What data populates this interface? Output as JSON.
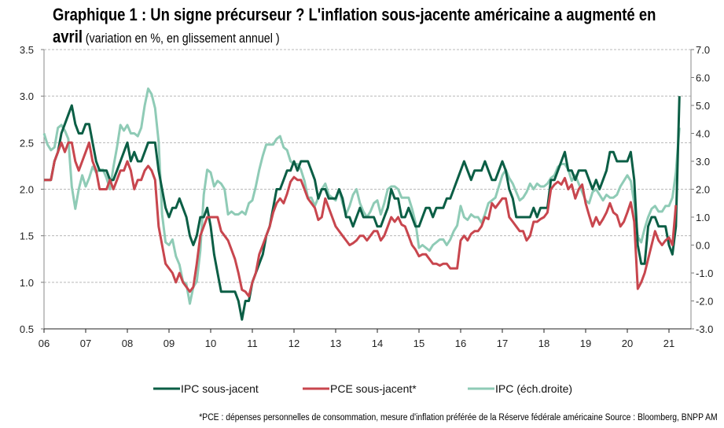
{
  "title": {
    "line1": "Graphique 1 : Un signe précurseur ? L'inflation sous-jacente américaine a augmenté en",
    "line2_bold": "avril",
    "line2_rest": "(variation en %, en glissement annuel )"
  },
  "footnote": "*PCE : dépenses personnelles de consommation, mesure d'inflation préférée de la Réserve fédérale américaine Source : Bloomberg, BNPP AM",
  "chart_data": {
    "type": "line",
    "frequency": "monthly",
    "start": "2006-01",
    "x_tick_labels": [
      "06",
      "07",
      "08",
      "09",
      "10",
      "11",
      "12",
      "13",
      "14",
      "15",
      "16",
      "17",
      "18",
      "19",
      "20",
      "21"
    ],
    "y_left": {
      "range": [
        0.5,
        3.5
      ],
      "ticks": [
        "0.5",
        "1.0",
        "1.5",
        "2.0",
        "2.5",
        "3.0",
        "3.5"
      ]
    },
    "y_right": {
      "range": [
        -3.0,
        7.0
      ],
      "ticks": [
        "-3.0",
        "-2.0",
        "-1.0",
        "0.0",
        "1.0",
        "2.0",
        "3.0",
        "4.0",
        "5.0",
        "6.0",
        "7.0"
      ]
    },
    "grid": "horizontal dashed",
    "legend_position": "bottom",
    "series": [
      {
        "name": "IPC sous-jacent",
        "axis": "left",
        "color": "#0b5e45",
        "values": [
          2.1,
          2.1,
          2.1,
          2.3,
          2.4,
          2.6,
          2.7,
          2.8,
          2.9,
          2.7,
          2.6,
          2.6,
          2.7,
          2.7,
          2.5,
          2.3,
          2.2,
          2.2,
          2.2,
          2.1,
          2.1,
          2.2,
          2.3,
          2.4,
          2.5,
          2.3,
          2.4,
          2.3,
          2.3,
          2.4,
          2.5,
          2.5,
          2.5,
          2.2,
          2.0,
          1.8,
          1.7,
          1.8,
          1.8,
          1.9,
          1.8,
          1.7,
          1.5,
          1.4,
          1.5,
          1.7,
          1.7,
          1.8,
          1.6,
          1.3,
          1.1,
          0.9,
          0.9,
          0.9,
          0.9,
          0.9,
          0.8,
          0.6,
          0.8,
          0.8,
          1.0,
          1.1,
          1.2,
          1.3,
          1.5,
          1.6,
          1.8,
          2.0,
          2.0,
          2.1,
          2.2,
          2.2,
          2.3,
          2.2,
          2.3,
          2.3,
          2.3,
          2.2,
          2.1,
          1.9,
          2.0,
          2.0,
          1.9,
          1.9,
          1.9,
          2.0,
          1.9,
          1.7,
          1.7,
          1.6,
          1.7,
          1.8,
          1.7,
          1.7,
          1.7,
          1.7,
          1.6,
          1.6,
          1.7,
          1.8,
          2.0,
          1.9,
          1.9,
          1.7,
          1.7,
          1.8,
          1.7,
          1.6,
          1.6,
          1.7,
          1.8,
          1.8,
          1.7,
          1.8,
          1.8,
          1.8,
          1.9,
          1.9,
          2.0,
          2.1,
          2.2,
          2.3,
          2.2,
          2.1,
          2.2,
          2.2,
          2.2,
          2.3,
          2.2,
          2.1,
          2.1,
          2.2,
          2.3,
          2.2,
          2.0,
          1.9,
          1.7,
          1.7,
          1.7,
          1.7,
          1.7,
          1.8,
          1.7,
          1.8,
          1.8,
          1.8,
          2.1,
          2.1,
          2.2,
          2.3,
          2.4,
          2.2,
          2.2,
          2.1,
          2.2,
          2.2,
          2.2,
          2.1,
          2.0,
          2.1,
          2.0,
          2.1,
          2.2,
          2.4,
          2.4,
          2.3,
          2.3,
          2.3,
          2.3,
          2.4,
          2.1,
          1.4,
          1.2,
          1.2,
          1.6,
          1.7,
          1.7,
          1.6,
          1.6,
          1.6,
          1.4,
          1.3,
          1.6,
          3.0
        ]
      },
      {
        "name": "PCE sous-jacent*",
        "axis": "left",
        "color": "#c8464e",
        "values": [
          2.1,
          2.1,
          2.1,
          2.3,
          2.4,
          2.5,
          2.4,
          2.5,
          2.5,
          2.3,
          2.2,
          2.3,
          2.4,
          2.5,
          2.3,
          2.2,
          2.0,
          2.0,
          2.0,
          2.1,
          2.0,
          2.1,
          2.2,
          2.2,
          2.3,
          2.2,
          2.0,
          2.1,
          2.1,
          2.2,
          2.25,
          2.2,
          2.1,
          1.6,
          1.4,
          1.2,
          1.15,
          1.1,
          1.0,
          1.1,
          1.0,
          0.95,
          0.9,
          0.95,
          1.2,
          1.5,
          1.6,
          1.7,
          1.7,
          1.7,
          1.7,
          1.55,
          1.5,
          1.45,
          1.35,
          1.25,
          1.1,
          0.92,
          0.9,
          0.85,
          1.0,
          1.1,
          1.3,
          1.4,
          1.5,
          1.6,
          1.75,
          1.85,
          1.9,
          1.85,
          1.95,
          2.08,
          2.13,
          2.1,
          2.1,
          2.0,
          1.9,
          1.85,
          1.8,
          1.67,
          1.7,
          1.9,
          1.8,
          1.7,
          1.6,
          1.55,
          1.5,
          1.45,
          1.4,
          1.42,
          1.45,
          1.5,
          1.5,
          1.45,
          1.5,
          1.55,
          1.55,
          1.45,
          1.5,
          1.6,
          1.7,
          1.65,
          1.7,
          1.62,
          1.6,
          1.5,
          1.4,
          1.35,
          1.28,
          1.3,
          1.3,
          1.25,
          1.2,
          1.2,
          1.18,
          1.2,
          1.2,
          1.15,
          1.15,
          1.15,
          1.45,
          1.5,
          1.45,
          1.52,
          1.55,
          1.55,
          1.6,
          1.7,
          1.68,
          1.85,
          1.8,
          1.85,
          1.9,
          1.9,
          1.7,
          1.65,
          1.6,
          1.55,
          1.55,
          1.45,
          1.5,
          1.65,
          1.65,
          1.68,
          1.7,
          1.75,
          2.0,
          2.05,
          2.08,
          2.05,
          2.12,
          2.0,
          2.05,
          1.9,
          2.0,
          2.05,
          1.85,
          1.72,
          1.6,
          1.7,
          1.62,
          1.68,
          1.75,
          1.85,
          1.75,
          1.72,
          1.6,
          1.65,
          1.75,
          1.86,
          1.65,
          0.93,
          1.0,
          1.1,
          1.25,
          1.4,
          1.55,
          1.45,
          1.4,
          1.45,
          1.48,
          1.4,
          1.83
        ]
      },
      {
        "name": "IPC (éch.droite)",
        "axis": "right",
        "color": "#8fcbb6",
        "values": [
          4.0,
          3.6,
          3.4,
          3.5,
          4.2,
          4.3,
          4.1,
          3.8,
          2.1,
          1.3,
          2.0,
          2.5,
          2.1,
          2.4,
          2.8,
          2.6,
          2.7,
          2.7,
          2.4,
          2.0,
          2.8,
          3.5,
          4.3,
          4.1,
          4.3,
          4.0,
          4.0,
          3.9,
          4.2,
          5.0,
          5.6,
          5.4,
          4.9,
          3.7,
          1.1,
          0.1,
          0.0,
          0.2,
          -0.4,
          -0.7,
          -1.3,
          -1.4,
          -2.1,
          -1.5,
          -1.3,
          -0.2,
          1.8,
          2.7,
          2.6,
          2.1,
          2.3,
          2.2,
          2.0,
          1.1,
          1.2,
          1.1,
          1.1,
          1.2,
          1.1,
          1.5,
          1.6,
          2.1,
          2.7,
          3.2,
          3.6,
          3.6,
          3.6,
          3.8,
          3.9,
          3.5,
          3.4,
          3.0,
          2.9,
          2.9,
          2.7,
          2.3,
          1.7,
          1.7,
          1.4,
          1.7,
          2.0,
          2.2,
          1.8,
          1.7,
          1.6,
          2.0,
          1.5,
          1.1,
          1.4,
          1.8,
          2.0,
          1.5,
          1.2,
          1.0,
          1.2,
          1.5,
          1.6,
          1.1,
          1.5,
          2.0,
          2.1,
          2.1,
          2.0,
          1.7,
          1.7,
          1.7,
          1.3,
          0.8,
          -0.1,
          0.0,
          -0.1,
          -0.2,
          0.0,
          0.1,
          0.2,
          0.2,
          0.0,
          0.2,
          0.5,
          0.7,
          1.4,
          1.0,
          0.9,
          1.1,
          1.0,
          1.0,
          0.8,
          1.1,
          1.5,
          1.6,
          1.7,
          2.1,
          2.5,
          2.7,
          2.4,
          2.2,
          1.9,
          1.6,
          1.7,
          1.9,
          2.2,
          2.0,
          2.2,
          2.1,
          2.1,
          2.2,
          2.4,
          2.5,
          2.8,
          2.9,
          2.9,
          2.7,
          2.3,
          2.5,
          2.2,
          1.9,
          1.6,
          1.5,
          1.9,
          2.0,
          1.8,
          1.6,
          1.8,
          1.7,
          1.7,
          1.8,
          2.1,
          2.3,
          2.5,
          2.3,
          1.5,
          0.3,
          0.1,
          0.6,
          1.0,
          1.3,
          1.4,
          1.2,
          1.2,
          1.4,
          1.4,
          1.7,
          2.6,
          4.2
        ]
      }
    ]
  }
}
